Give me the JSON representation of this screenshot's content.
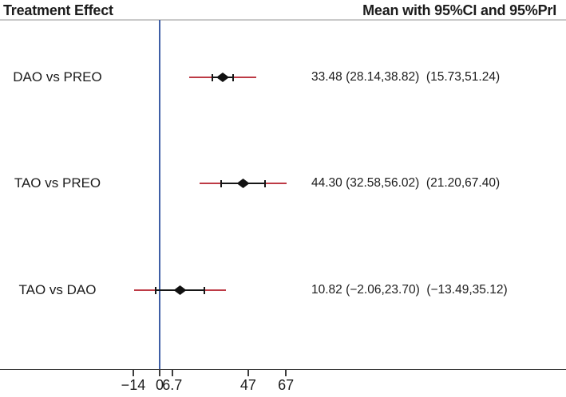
{
  "header": {
    "title": "Treatment Effect",
    "subtitle": "Mean with 95%CI and 95%PrI"
  },
  "colors": {
    "text": "#1c1c1c",
    "prediction_interval": "#bd3a45",
    "confidence_interval": "#161616",
    "mean_marker": "#111111",
    "reference_line": "#3f5fa6",
    "axis_line": "#3d3d3d",
    "header_rule": "#c9c9c9"
  },
  "chart_data": {
    "type": "forest",
    "title": "Treatment Effect",
    "value_column_header": "Mean with 95%CI and 95%PrI",
    "rows": [
      {
        "label": "DAO vs PREO",
        "mean": 33.48,
        "ci95": [
          28.14,
          38.82
        ],
        "pri95": [
          15.73,
          51.24
        ],
        "display": "33.48 (28.14,38.82)  (15.73,51.24)"
      },
      {
        "label": "TAO vs PREO",
        "mean": 44.3,
        "ci95": [
          32.58,
          56.02
        ],
        "pri95": [
          21.2,
          67.4
        ],
        "display": "44.30 (32.58,56.02)  (21.20,67.40)"
      },
      {
        "label": "TAO vs DAO",
        "mean": 10.82,
        "ci95": [
          -2.06,
          23.7
        ],
        "pri95": [
          -13.49,
          35.12
        ],
        "display": "10.82 (−2.06,23.70)  (−13.49,35.12)"
      }
    ],
    "x_axis": {
      "reference_value": 0,
      "ticks": [
        {
          "value": -14,
          "label": "−14"
        },
        {
          "value": 0,
          "label": "0"
        },
        {
          "value": 6.7,
          "label": "6.7"
        },
        {
          "value": 47,
          "label": "47"
        },
        {
          "value": 67,
          "label": "67"
        }
      ]
    },
    "grid": false,
    "legend": "none"
  }
}
